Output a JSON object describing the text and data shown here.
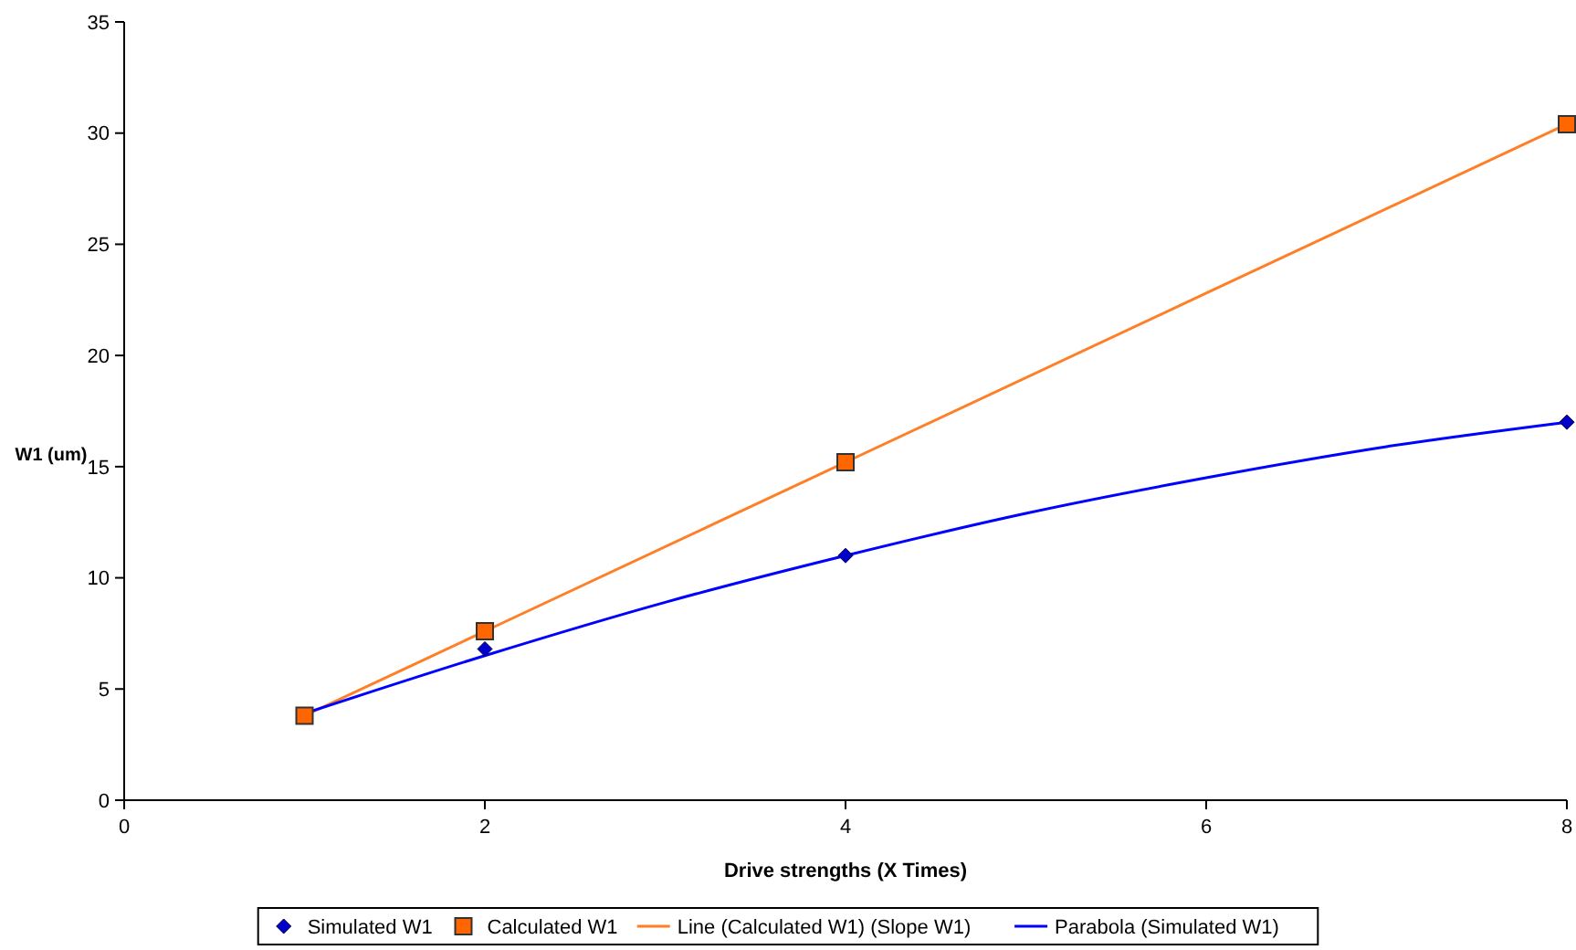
{
  "chart_data": {
    "type": "scatter",
    "xlabel": "Drive strengths (X Times)",
    "ylabel": "W1 (um)",
    "xlim": [
      0,
      8
    ],
    "xticks": [
      0,
      2,
      4,
      6,
      8
    ],
    "ylim": [
      0,
      35
    ],
    "yticks": [
      0,
      5,
      10,
      15,
      20,
      25,
      30,
      35
    ],
    "grid": false,
    "legend": "bottom",
    "series": [
      {
        "name": "Simulated W1",
        "marker": "diamond",
        "color": "#0000cc",
        "x": [
          2,
          4,
          8
        ],
        "values": [
          6.8,
          11.0,
          17.0
        ]
      },
      {
        "name": "Calculated W1",
        "marker": "square",
        "color": "#ff6600",
        "x": [
          1,
          2,
          4,
          8
        ],
        "values": [
          3.8,
          7.6,
          15.2,
          30.4
        ]
      },
      {
        "name": "Line (Calculated W1) (Slope W1)",
        "type": "line",
        "marker": "none",
        "color": "#ff7f27",
        "x": [
          1,
          2,
          4,
          8
        ],
        "values": [
          3.8,
          7.6,
          15.2,
          30.4
        ]
      },
      {
        "name": "Parabola (Simulated W1)",
        "type": "line",
        "marker": "none",
        "color": "#0000ff",
        "x": [
          1,
          2,
          3,
          4,
          5,
          6,
          7,
          8
        ],
        "values": [
          3.9,
          6.5,
          8.9,
          11.0,
          12.9,
          14.5,
          15.9,
          17.0
        ]
      }
    ]
  }
}
